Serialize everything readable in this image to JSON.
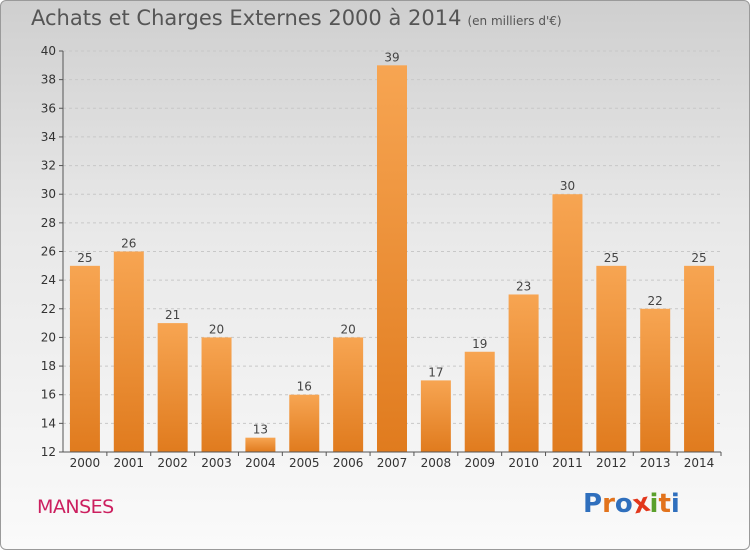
{
  "title": "Achats et Charges Externes 2000 à 2014",
  "unit": "(en milliers d'€)",
  "commune": "MANSES",
  "logo": {
    "letters": [
      "P",
      "r",
      "o",
      "x",
      "i",
      "t",
      "i"
    ],
    "colors": [
      "#2f6fbd",
      "#e2731c",
      "#2f6fbd",
      "#e2371c",
      "#5aa02c",
      "#e2731c",
      "#2f6fbd"
    ]
  },
  "colors": {
    "bar_light": "#f7a552",
    "bar_dark": "#e07b1e",
    "grid": "#c8c8c8"
  },
  "chart_data": {
    "type": "bar",
    "categories": [
      "2000",
      "2001",
      "2002",
      "2003",
      "2004",
      "2005",
      "2006",
      "2007",
      "2008",
      "2009",
      "2010",
      "2011",
      "2012",
      "2013",
      "2014"
    ],
    "values": [
      25,
      26,
      21,
      20,
      13,
      16,
      20,
      39,
      17,
      19,
      23,
      30,
      25,
      22,
      25
    ],
    "ylim": [
      12,
      40
    ],
    "yticks": [
      12,
      14,
      16,
      18,
      20,
      22,
      24,
      26,
      28,
      30,
      32,
      34,
      36,
      38,
      40
    ],
    "grid": "horizontal dashed"
  }
}
